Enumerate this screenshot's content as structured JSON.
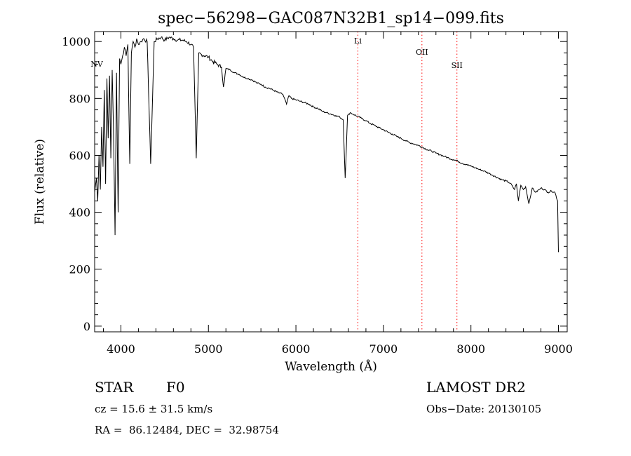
{
  "chart_data": {
    "type": "line",
    "title": "spec−56298−GAC087N32B1_sp14−099.fits",
    "xlabel": "Wavelength (Å)",
    "ylabel": "Flux (relative)",
    "xlim": [
      3700,
      9100
    ],
    "ylim": [
      -20,
      1035
    ],
    "x_ticks": [
      4000,
      5000,
      6000,
      7000,
      8000,
      9000
    ],
    "x_tick_labels": [
      "4000",
      "5000",
      "6000",
      "7000",
      "8000",
      "9000"
    ],
    "y_ticks": [
      0,
      200,
      400,
      600,
      800,
      1000
    ],
    "y_tick_labels": [
      "0",
      "200",
      "400",
      "600",
      "800",
      "1000"
    ],
    "grid": false,
    "line_color": "#000000",
    "series": [
      {
        "x": [
          3700,
          3720,
          3735,
          3750,
          3765,
          3780,
          3795,
          3810,
          3825,
          3840,
          3855,
          3870,
          3885,
          3900,
          3915,
          3933,
          3950,
          3968,
          3985,
          4000,
          4020,
          4040,
          4060,
          4080,
          4101,
          4120,
          4140,
          4160,
          4180,
          4200,
          4230,
          4260,
          4300,
          4340,
          4380,
          4420,
          4460,
          4500,
          4550,
          4600,
          4650,
          4700,
          4750,
          4800,
          4830,
          4861,
          4890,
          4920,
          4960,
          5000,
          5050,
          5100,
          5150,
          5172,
          5200,
          5250,
          5300,
          5350,
          5400,
          5450,
          5500,
          5550,
          5600,
          5650,
          5700,
          5750,
          5800,
          5850,
          5893,
          5920,
          5950,
          6000,
          6050,
          6100,
          6150,
          6200,
          6250,
          6300,
          6350,
          6400,
          6450,
          6500,
          6540,
          6563,
          6590,
          6620,
          6650,
          6700,
          6750,
          6800,
          6850,
          6900,
          6950,
          7000,
          7050,
          7100,
          7150,
          7200,
          7250,
          7300,
          7350,
          7400,
          7450,
          7500,
          7550,
          7600,
          7650,
          7700,
          7750,
          7800,
          7850,
          7900,
          7950,
          8000,
          8050,
          8100,
          8150,
          8200,
          8250,
          8300,
          8350,
          8400,
          8450,
          8498,
          8520,
          8542,
          8570,
          8600,
          8625,
          8662,
          8700,
          8740,
          8780,
          8800,
          8840,
          8880,
          8920,
          8960,
          8990,
          9000
        ],
        "y": [
          470,
          520,
          440,
          600,
          480,
          700,
          560,
          830,
          500,
          870,
          660,
          880,
          590,
          900,
          700,
          320,
          890,
          400,
          940,
          920,
          950,
          980,
          950,
          990,
          570,
          960,
          1000,
          980,
          1010,
          990,
          1000,
          1010,
          1000,
          570,
          1000,
          1010,
          1015,
          1005,
          1015,
          1010,
          1005,
          1005,
          1000,
          990,
          980,
          590,
          960,
          955,
          950,
          945,
          930,
          920,
          910,
          840,
          905,
          900,
          890,
          885,
          875,
          870,
          865,
          855,
          850,
          840,
          835,
          828,
          820,
          815,
          780,
          810,
          800,
          795,
          790,
          785,
          780,
          770,
          765,
          755,
          750,
          745,
          740,
          735,
          725,
          520,
          740,
          750,
          745,
          738,
          730,
          722,
          712,
          705,
          697,
          690,
          682,
          675,
          667,
          660,
          652,
          645,
          640,
          635,
          628,
          620,
          615,
          608,
          602,
          596,
          590,
          585,
          580,
          572,
          568,
          562,
          556,
          550,
          545,
          538,
          530,
          522,
          515,
          510,
          502,
          480,
          500,
          440,
          495,
          480,
          490,
          430,
          485,
          470,
          480,
          485,
          480,
          470,
          475,
          470,
          440,
          260
        ]
      }
    ],
    "line_markers": [
      {
        "label": "NV",
        "x": 3700
      },
      {
        "label": "Li",
        "x": 6708
      },
      {
        "label": "OII",
        "x": 7440
      },
      {
        "label": "SII",
        "x": 7840
      }
    ],
    "marker_color": "#ff0000"
  },
  "info": {
    "class_label": "STAR",
    "subclass_label": "F0",
    "survey_label": "LAMOST DR2",
    "cz_text": "cz = 15.6 ± 31.5 km/s",
    "obs_date_text": "Obs−Date: 20130105",
    "radec_text": "RA =  86.12484, DEC =  32.98754"
  }
}
